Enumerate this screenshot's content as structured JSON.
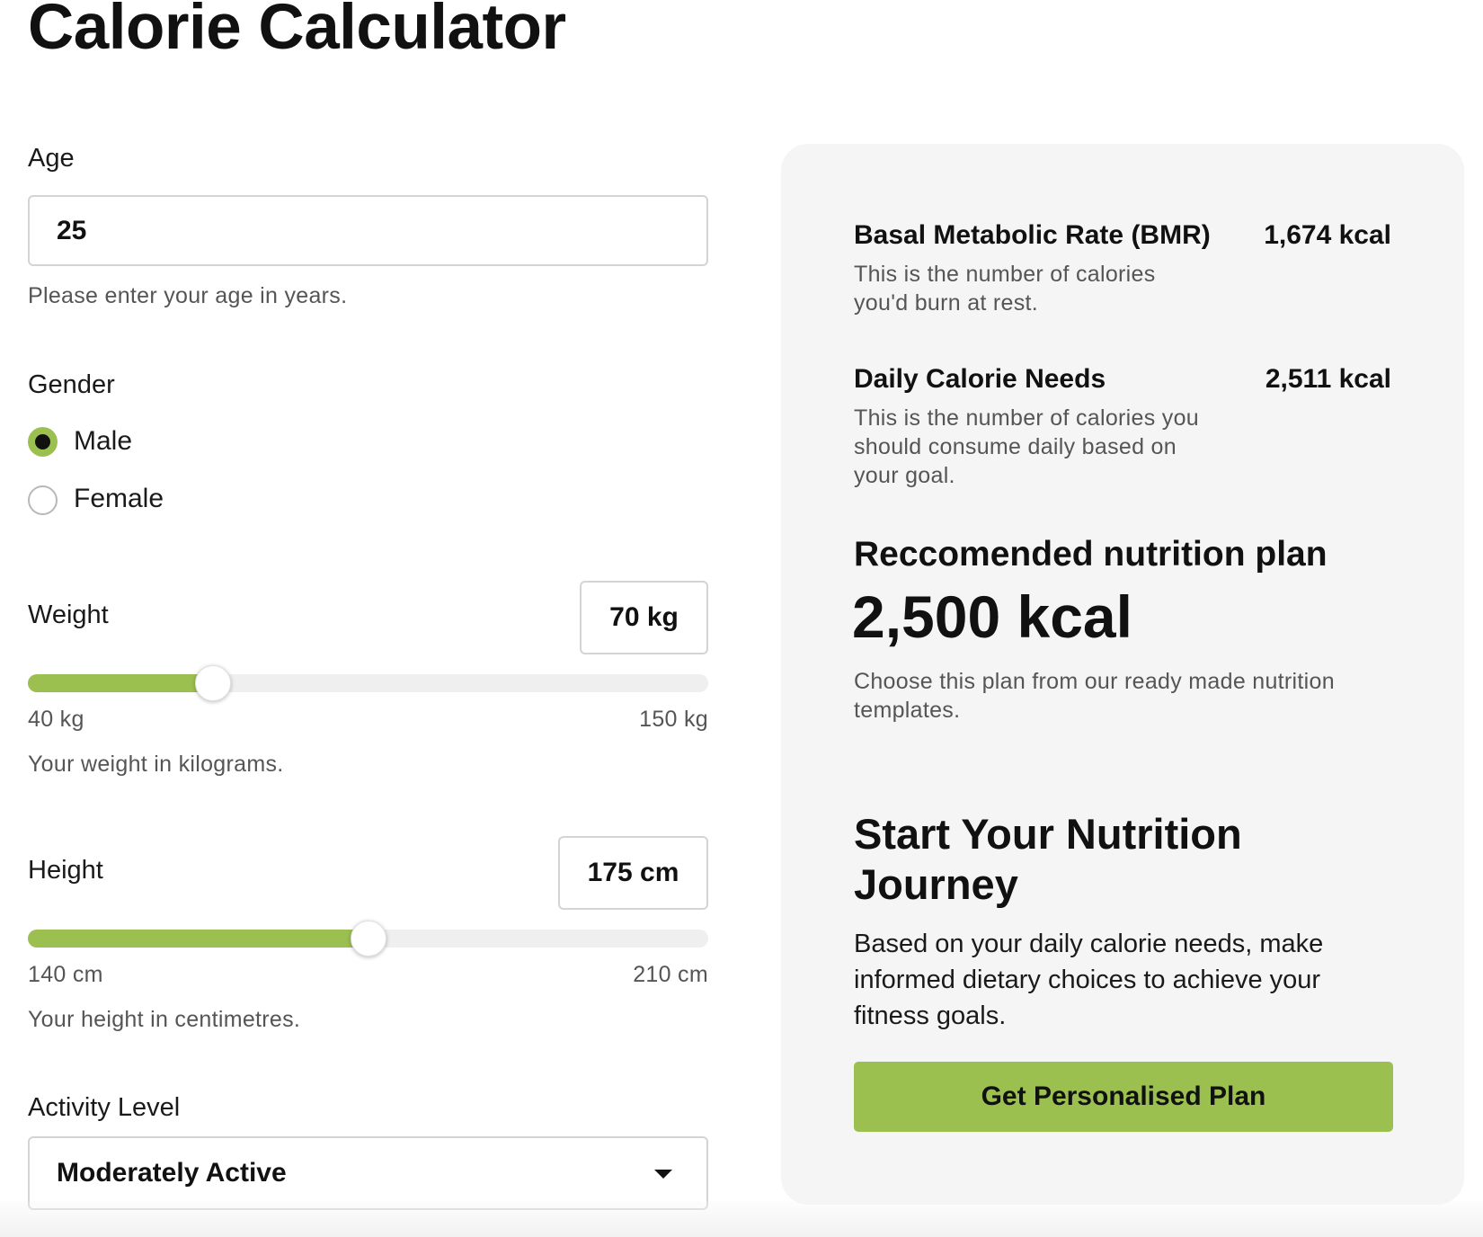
{
  "page": {
    "title": "Calorie Calculator"
  },
  "form": {
    "age": {
      "label": "Age",
      "value": "25",
      "hint": "Please enter your age in years."
    },
    "gender": {
      "label": "Gender",
      "options": [
        {
          "label": "Male",
          "selected": true
        },
        {
          "label": "Female",
          "selected": false
        }
      ]
    },
    "weight": {
      "label": "Weight",
      "display": "70 kg",
      "value": 70,
      "min": 40,
      "max": 150,
      "min_label": "40 kg",
      "max_label": "150 kg",
      "hint": "Your weight in kilograms."
    },
    "height": {
      "label": "Height",
      "display": "175 cm",
      "value": 175,
      "min": 140,
      "max": 210,
      "min_label": "140 cm",
      "max_label": "210 cm",
      "hint": "Your height in centimetres."
    },
    "activity": {
      "label": "Activity Level",
      "selected": "Moderately Active"
    }
  },
  "results": {
    "bmr": {
      "title": "Basal Metabolic Rate (BMR)",
      "value": "1,674 kcal",
      "desc": "This is the number of calories you'd burn at rest."
    },
    "daily": {
      "title": "Daily Calorie Needs",
      "value": "2,511 kcal",
      "desc": "This is the number of calories you should consume daily based on your goal."
    },
    "plan": {
      "heading": "Reccomended nutrition plan",
      "value": "2,500 kcal",
      "desc": "Choose this plan from our ready made nutrition templates."
    },
    "journey": {
      "heading": "Start Your Nutrition Journey",
      "desc": "Based on your daily calorie needs, make informed dietary choices to achieve your fitness goals.",
      "cta": "Get Personalised Plan"
    }
  },
  "colors": {
    "accent": "#9bc050",
    "panel": "#f5f5f5",
    "text": "#111111",
    "muted": "#555555"
  }
}
